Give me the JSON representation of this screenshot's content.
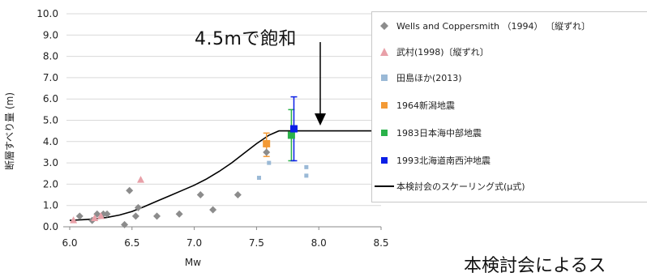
{
  "chart_data": {
    "type": "scatter",
    "xlabel": "Mw",
    "ylabel": "断層すべり量 (m)",
    "xlim": [
      6.0,
      8.5
    ],
    "ylim": [
      0.0,
      10.0
    ],
    "xticks": [
      "6.0",
      "6.5",
      "7.0",
      "7.5",
      "8.0",
      "8.5"
    ],
    "yticks": [
      "0.0",
      "1.0",
      "2.0",
      "3.0",
      "4.0",
      "5.0",
      "6.0",
      "7.0",
      "8.0",
      "9.0",
      "10.0"
    ],
    "grid": "horizontal",
    "series": [
      {
        "name": "Wells and Coppersmith （1994） 〔縦ずれ〕",
        "marker": "diamond",
        "color": "#8c8c8c",
        "points": [
          [
            6.08,
            0.5
          ],
          [
            6.18,
            0.3
          ],
          [
            6.22,
            0.6
          ],
          [
            6.27,
            0.6
          ],
          [
            6.3,
            0.6
          ],
          [
            6.44,
            0.1
          ],
          [
            6.48,
            1.7
          ],
          [
            6.53,
            0.5
          ],
          [
            6.55,
            0.9
          ],
          [
            6.7,
            0.5
          ],
          [
            6.88,
            0.6
          ],
          [
            7.05,
            1.5
          ],
          [
            7.15,
            0.8
          ],
          [
            7.35,
            1.5
          ],
          [
            7.58,
            3.5
          ]
        ]
      },
      {
        "name": "武村(1998)〔縦ずれ〕",
        "marker": "triangle",
        "color": "#e8a0a8",
        "points": [
          [
            6.03,
            0.3
          ],
          [
            6.2,
            0.4
          ],
          [
            6.25,
            0.5
          ],
          [
            6.57,
            2.2
          ]
        ]
      },
      {
        "name": "田島ほか(2013)",
        "marker": "square",
        "color": "#9ab9d6",
        "points": [
          [
            7.52,
            2.3
          ],
          [
            7.6,
            3.0
          ],
          [
            7.9,
            2.4
          ],
          [
            7.9,
            2.8
          ]
        ]
      },
      {
        "name": "1964新潟地震",
        "marker": "square",
        "color": "#f39a36",
        "points": [
          [
            7.58,
            3.9
          ]
        ],
        "error": [
          [
            3.3,
            4.4
          ]
        ]
      },
      {
        "name": "1983日本海中部地震",
        "marker": "square",
        "color": "#2ab24a",
        "points": [
          [
            7.78,
            4.3
          ]
        ],
        "error": [
          [
            3.1,
            5.5
          ]
        ]
      },
      {
        "name": "1993北海道南西沖地震",
        "marker": "square",
        "color": "#0a1ee6",
        "points": [
          [
            7.8,
            4.6
          ]
        ],
        "error": [
          [
            3.1,
            6.1
          ]
        ]
      },
      {
        "name": "本検討会のスケーリング式(μ式)",
        "marker": "line",
        "color": "#000000",
        "curve": [
          [
            6.0,
            0.3
          ],
          [
            6.1,
            0.33
          ],
          [
            6.2,
            0.37
          ],
          [
            6.3,
            0.44
          ],
          [
            6.4,
            0.55
          ],
          [
            6.5,
            0.72
          ],
          [
            6.6,
            0.95
          ],
          [
            6.7,
            1.2
          ],
          [
            6.8,
            1.45
          ],
          [
            6.9,
            1.7
          ],
          [
            7.0,
            1.95
          ],
          [
            7.1,
            2.25
          ],
          [
            7.2,
            2.6
          ],
          [
            7.3,
            3.0
          ],
          [
            7.4,
            3.45
          ],
          [
            7.5,
            3.9
          ],
          [
            7.6,
            4.3
          ],
          [
            7.68,
            4.5
          ],
          [
            8.5,
            4.5
          ]
        ]
      }
    ],
    "annotation": "4.5mで飽和"
  },
  "caption": "本検討会によるス"
}
